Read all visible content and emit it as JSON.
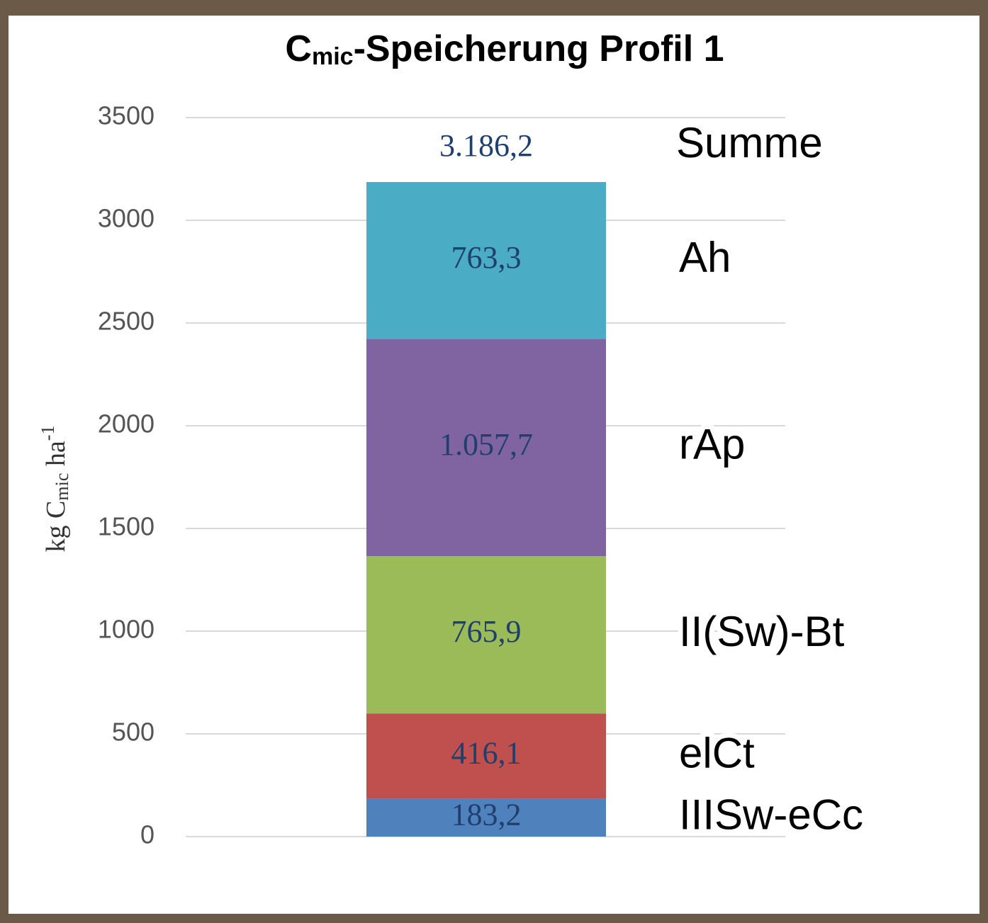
{
  "chart_data": {
    "type": "stacked_bar",
    "title": [
      "C",
      "mic",
      "-Speicherung Profil 1"
    ],
    "y_label": [
      "kg C",
      "mic",
      " ha",
      "-1"
    ],
    "series": [
      {
        "name": "IIISw-eCc",
        "color": "#4f81bd",
        "values": [
          183.2
        ],
        "value_labels": [
          "183,2"
        ]
      },
      {
        "name": "elCt",
        "color": "#c0504d",
        "values": [
          416.1
        ],
        "value_labels": [
          "416,1"
        ]
      },
      {
        "name": "II(Sw)-Bt",
        "color": "#9bbb59",
        "values": [
          765.9
        ],
        "value_labels": [
          "765,9"
        ]
      },
      {
        "name": "rAp",
        "color": "#8064a2",
        "values": [
          1057.7
        ],
        "value_labels": [
          "1.057,7"
        ]
      },
      {
        "name": "Ah",
        "color": "#4bacc6",
        "values": [
          763.3
        ],
        "value_labels": [
          "763,3"
        ]
      }
    ],
    "total_name": "Summe",
    "total": 3186.2,
    "total_label": "3.186,2",
    "ylim": [
      0,
      3500
    ],
    "yticks": [
      0,
      500,
      1000,
      1500,
      2000,
      2500,
      3000,
      3500
    ],
    "grid": true
  }
}
